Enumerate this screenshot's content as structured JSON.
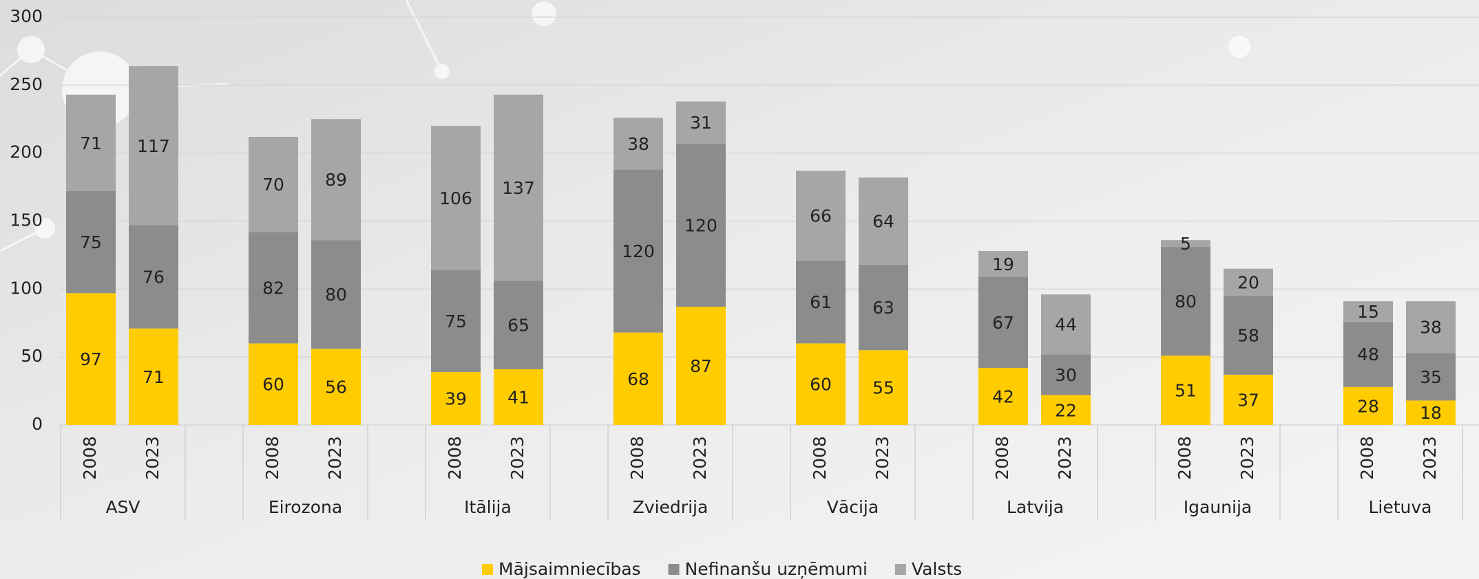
{
  "chart_data": {
    "type": "stacked-bar",
    "groups": [
      "ASV",
      "Eirozona",
      "Itālija",
      "Zviedrija",
      "Vācija",
      "Latvija",
      "Igaunija",
      "Lietuva"
    ],
    "categories": [
      "2008",
      "2023",
      "2008",
      "2023",
      "2008",
      "2023",
      "2008",
      "2023",
      "2008",
      "2023",
      "2008",
      "2023",
      "2008",
      "2023",
      "2008",
      "2023"
    ],
    "series": [
      {
        "name": "Mājsaimniecības",
        "color": "#ffcc00",
        "values": [
          97,
          71,
          60,
          56,
          39,
          41,
          68,
          87,
          60,
          55,
          42,
          22,
          51,
          37,
          28,
          18
        ]
      },
      {
        "name": "Nefinanšu uzņēmumi",
        "color": "#8c8c8c",
        "values": [
          75,
          76,
          82,
          80,
          75,
          65,
          120,
          120,
          61,
          63,
          67,
          30,
          80,
          58,
          48,
          35
        ]
      },
      {
        "name": "Valsts",
        "color": "#a6a6a6",
        "values": [
          71,
          117,
          70,
          89,
          106,
          137,
          38,
          31,
          66,
          64,
          19,
          44,
          5,
          20,
          15,
          38
        ]
      }
    ],
    "ylim": [
      0,
      300
    ],
    "yticks": [
      0,
      50,
      100,
      150,
      200,
      250,
      300
    ],
    "grid": true,
    "legend": "bottom"
  }
}
